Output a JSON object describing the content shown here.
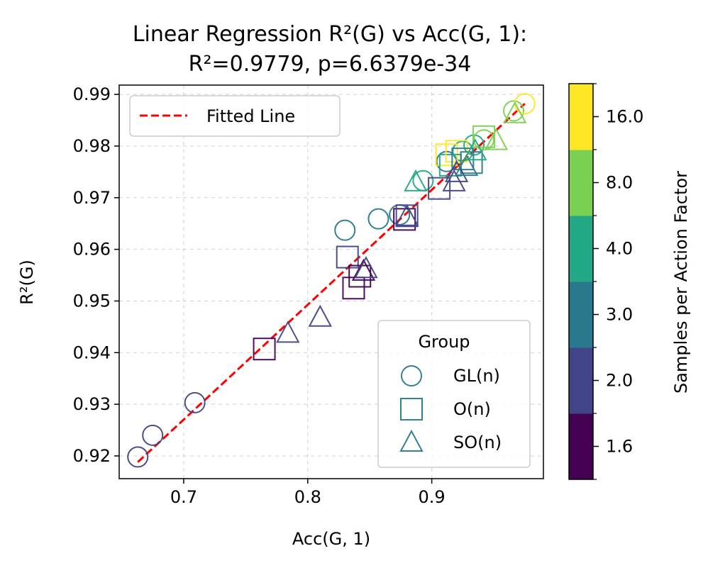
{
  "chart_data": {
    "type": "scatter",
    "title": "Linear Regression R²(G) vs Acc(G, 1):",
    "subtitle": "R²=0.9779, p=6.6379e-34",
    "xlabel": "Acc(G, 1)",
    "ylabel": "R²(G)",
    "xlim": [
      0.648,
      0.99
    ],
    "ylim": [
      0.9156,
      0.9918
    ],
    "xticks": [
      0.7,
      0.8,
      0.9
    ],
    "xtick_labels": [
      "0.7",
      "0.8",
      "0.9"
    ],
    "yticks": [
      0.92,
      0.93,
      0.94,
      0.95,
      0.96,
      0.97,
      0.98,
      0.99
    ],
    "ytick_labels": [
      "0.92",
      "0.93",
      "0.94",
      "0.95",
      "0.96",
      "0.97",
      "0.98",
      "0.99"
    ],
    "grid": true,
    "fit_line": {
      "label": "Fitted Line",
      "color": "#ff0000",
      "x": [
        0.663,
        0.975
      ],
      "y": [
        0.9188,
        0.9882
      ]
    },
    "colorbar": {
      "label": "Samples per Action Factor",
      "tick_labels": [
        "1.6",
        "2.0",
        "3.0",
        "4.0",
        "8.0",
        "16.0"
      ],
      "colors": [
        "#440154",
        "#414487",
        "#2a788e",
        "#22a884",
        "#7ad151",
        "#fde725"
      ]
    },
    "legend": {
      "title": "Group",
      "placement": "lower right",
      "entries": [
        {
          "label": "GL(n)",
          "marker": "circle"
        },
        {
          "label": "O(n)",
          "marker": "square"
        },
        {
          "label": "SO(n)",
          "marker": "triangle"
        }
      ],
      "color": "#2a788e"
    },
    "series": [
      {
        "name": "GL(n)",
        "marker": "circle",
        "points": [
          {
            "x": 0.663,
            "y": 0.9198,
            "factor": "2.0"
          },
          {
            "x": 0.675,
            "y": 0.924,
            "factor": "2.0"
          },
          {
            "x": 0.709,
            "y": 0.9303,
            "factor": "2.0"
          },
          {
            "x": 0.83,
            "y": 0.9637,
            "factor": "3.0"
          },
          {
            "x": 0.857,
            "y": 0.9659,
            "factor": "3.0"
          },
          {
            "x": 0.874,
            "y": 0.9667,
            "factor": "3.0"
          },
          {
            "x": 0.893,
            "y": 0.9733,
            "factor": "4.0"
          },
          {
            "x": 0.912,
            "y": 0.977,
            "factor": "3.0"
          },
          {
            "x": 0.925,
            "y": 0.979,
            "factor": "4.0"
          },
          {
            "x": 0.934,
            "y": 0.9802,
            "factor": "4.0"
          },
          {
            "x": 0.942,
            "y": 0.9812,
            "factor": "8.0"
          },
          {
            "x": 0.966,
            "y": 0.9868,
            "factor": "8.0"
          },
          {
            "x": 0.975,
            "y": 0.9882,
            "factor": "16.0"
          }
        ]
      },
      {
        "name": "O(n)",
        "marker": "square",
        "points": [
          {
            "x": 0.765,
            "y": 0.9407,
            "factor": "1.6"
          },
          {
            "x": 0.832,
            "y": 0.9585,
            "factor": "2.0"
          },
          {
            "x": 0.837,
            "y": 0.9525,
            "factor": "1.6"
          },
          {
            "x": 0.842,
            "y": 0.9548,
            "factor": "1.6"
          },
          {
            "x": 0.878,
            "y": 0.9658,
            "factor": "1.6"
          },
          {
            "x": 0.88,
            "y": 0.9665,
            "factor": "2.0"
          },
          {
            "x": 0.906,
            "y": 0.9718,
            "factor": "2.0"
          },
          {
            "x": 0.912,
            "y": 0.9783,
            "factor": "16.0"
          },
          {
            "x": 0.915,
            "y": 0.9763,
            "factor": "4.0"
          },
          {
            "x": 0.92,
            "y": 0.979,
            "factor": "16.0"
          },
          {
            "x": 0.925,
            "y": 0.9775,
            "factor": "3.0"
          },
          {
            "x": 0.932,
            "y": 0.9768,
            "factor": "3.0"
          },
          {
            "x": 0.942,
            "y": 0.9818,
            "factor": "8.0"
          }
        ]
      },
      {
        "name": "SO(n)",
        "marker": "triangle",
        "points": [
          {
            "x": 0.784,
            "y": 0.9437,
            "factor": "2.0"
          },
          {
            "x": 0.81,
            "y": 0.9468,
            "factor": "2.0"
          },
          {
            "x": 0.845,
            "y": 0.9557,
            "factor": "1.6"
          },
          {
            "x": 0.847,
            "y": 0.9562,
            "factor": "2.0"
          },
          {
            "x": 0.88,
            "y": 0.9663,
            "factor": "2.0"
          },
          {
            "x": 0.887,
            "y": 0.973,
            "factor": "4.0"
          },
          {
            "x": 0.918,
            "y": 0.973,
            "factor": "2.0"
          },
          {
            "x": 0.92,
            "y": 0.9748,
            "factor": "2.0"
          },
          {
            "x": 0.928,
            "y": 0.976,
            "factor": "3.0"
          },
          {
            "x": 0.935,
            "y": 0.979,
            "factor": "4.0"
          },
          {
            "x": 0.952,
            "y": 0.981,
            "factor": "8.0"
          },
          {
            "x": 0.967,
            "y": 0.9862,
            "factor": "8.0"
          }
        ]
      }
    ]
  }
}
